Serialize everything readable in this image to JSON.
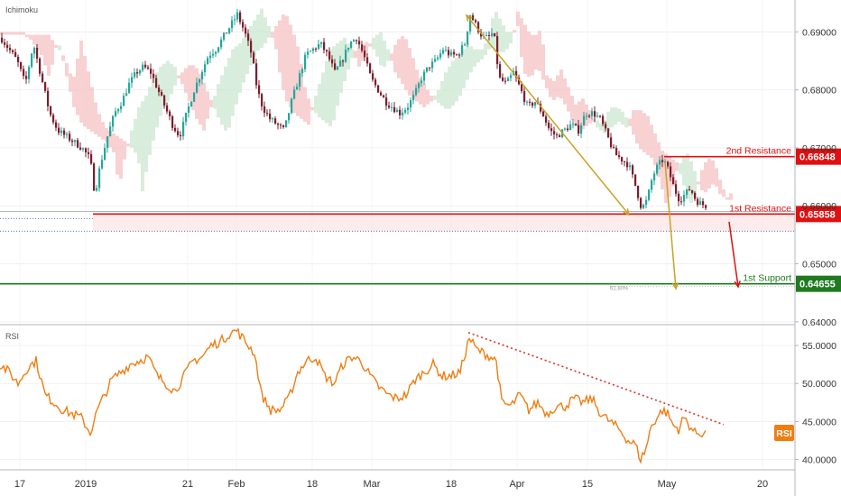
{
  "chart_data": [
    {
      "type": "candlestick",
      "indicator_label": "Ichimoku",
      "y_ticks": [
        "0.69000",
        "0.68000",
        "0.67000",
        "0.66000",
        "0.65000",
        "0.64000"
      ],
      "ylim": [
        0.6395,
        0.6955
      ],
      "x_ticks": [
        "17",
        "2019",
        "21",
        "Feb",
        "18",
        "Mar",
        "18",
        "Apr",
        "15",
        "May",
        "20"
      ],
      "price_path": [
        [
          0,
          0.689
        ],
        [
          9,
          0.687
        ],
        [
          18,
          0.685
        ],
        [
          27,
          0.681
        ],
        [
          36,
          0.688
        ],
        [
          45,
          0.682
        ],
        [
          54,
          0.676
        ],
        [
          63,
          0.673
        ],
        [
          72,
          0.672
        ],
        [
          81,
          0.671
        ],
        [
          90,
          0.67
        ],
        [
          99,
          0.668
        ],
        [
          104,
          0.662
        ],
        [
          110,
          0.667
        ],
        [
          118,
          0.672
        ],
        [
          126,
          0.676
        ],
        [
          134,
          0.678
        ],
        [
          142,
          0.681
        ],
        [
          150,
          0.683
        ],
        [
          158,
          0.684
        ],
        [
          166,
          0.683
        ],
        [
          174,
          0.68
        ],
        [
          182,
          0.677
        ],
        [
          190,
          0.674
        ],
        [
          198,
          0.672
        ],
        [
          206,
          0.676
        ],
        [
          214,
          0.68
        ],
        [
          222,
          0.683
        ],
        [
          230,
          0.686
        ],
        [
          238,
          0.687
        ],
        [
          246,
          0.689
        ],
        [
          254,
          0.691
        ],
        [
          262,
          0.693
        ],
        [
          270,
          0.69
        ],
        [
          278,
          0.686
        ],
        [
          284,
          0.68
        ],
        [
          290,
          0.677
        ],
        [
          298,
          0.675
        ],
        [
          306,
          0.674
        ],
        [
          314,
          0.673
        ],
        [
          322,
          0.678
        ],
        [
          330,
          0.682
        ],
        [
          338,
          0.686
        ],
        [
          346,
          0.687
        ],
        [
          354,
          0.688
        ],
        [
          362,
          0.686
        ],
        [
          370,
          0.683
        ],
        [
          378,
          0.685
        ],
        [
          386,
          0.688
        ],
        [
          394,
          0.689
        ],
        [
          402,
          0.686
        ],
        [
          410,
          0.682
        ],
        [
          418,
          0.68
        ],
        [
          426,
          0.678
        ],
        [
          434,
          0.677
        ],
        [
          442,
          0.676
        ],
        [
          450,
          0.677
        ],
        [
          458,
          0.679
        ],
        [
          466,
          0.682
        ],
        [
          474,
          0.684
        ],
        [
          482,
          0.685
        ],
        [
          490,
          0.687
        ],
        [
          498,
          0.686
        ],
        [
          506,
          0.686
        ],
        [
          514,
          0.688
        ],
        [
          520,
          0.693
        ],
        [
          527,
          0.691
        ],
        [
          534,
          0.689
        ],
        [
          540,
          0.689
        ],
        [
          546,
          0.69
        ],
        [
          552,
          0.682
        ],
        [
          560,
          0.681
        ],
        [
          568,
          0.683
        ],
        [
          576,
          0.68
        ],
        [
          584,
          0.677
        ],
        [
          592,
          0.678
        ],
        [
          600,
          0.676
        ],
        [
          608,
          0.673
        ],
        [
          616,
          0.672
        ],
        [
          624,
          0.673
        ],
        [
          632,
          0.674
        ],
        [
          640,
          0.673
        ],
        [
          648,
          0.676
        ],
        [
          656,
          0.676
        ],
        [
          664,
          0.675
        ],
        [
          672,
          0.672
        ],
        [
          680,
          0.669
        ],
        [
          688,
          0.668
        ],
        [
          696,
          0.667
        ],
        [
          704,
          0.663
        ],
        [
          710,
          0.6595
        ],
        [
          716,
          0.661
        ],
        [
          722,
          0.665
        ],
        [
          728,
          0.667
        ],
        [
          734,
          0.668
        ],
        [
          740,
          0.666
        ],
        [
          746,
          0.663
        ],
        [
          752,
          0.661
        ],
        [
          758,
          0.662
        ],
        [
          764,
          0.663
        ],
        [
          770,
          0.661
        ],
        [
          776,
          0.6603
        ],
        [
          782,
          0.66
        ]
      ],
      "annotations": {
        "resistance_2": {
          "label": "2nd Resistance",
          "value": "0.66848"
        },
        "resistance_1": {
          "label": "1st Resistance",
          "value": "0.65858"
        },
        "support_1": {
          "label": "1st Support",
          "value": "0.64655"
        },
        "fib_label": "61.80%"
      },
      "colors": {
        "up": "#26a69a",
        "down": "#7b1e2c",
        "resistance": "#e01010",
        "support": "#1f7a1f",
        "cloud_bear": "#f6c6c8",
        "cloud_bull": "#cfe8d4",
        "arrow": "#c9a227",
        "projection": "#e01010"
      }
    },
    {
      "type": "line",
      "indicator_label": "RSI",
      "y_ticks": [
        "55.0000",
        "50.0000",
        "45.0000",
        "40.0000"
      ],
      "ylim": [
        39.0,
        57.5
      ],
      "badge": "RSI",
      "rsi_path": [
        [
          0,
          52.5
        ],
        [
          10,
          51.5
        ],
        [
          20,
          50.0
        ],
        [
          30,
          52.0
        ],
        [
          40,
          53.0
        ],
        [
          50,
          48.5
        ],
        [
          60,
          47.5
        ],
        [
          70,
          46.5
        ],
        [
          80,
          46.0
        ],
        [
          90,
          45.5
        ],
        [
          100,
          43.5
        ],
        [
          108,
          46.5
        ],
        [
          116,
          48.5
        ],
        [
          124,
          50.5
        ],
        [
          134,
          51.5
        ],
        [
          144,
          52.5
        ],
        [
          154,
          53.0
        ],
        [
          164,
          53.5
        ],
        [
          174,
          51.0
        ],
        [
          184,
          50.0
        ],
        [
          194,
          49.0
        ],
        [
          204,
          51.0
        ],
        [
          214,
          53.0
        ],
        [
          224,
          53.5
        ],
        [
          234,
          55.0
        ],
        [
          244,
          55.5
        ],
        [
          254,
          56.5
        ],
        [
          262,
          57.0
        ],
        [
          272,
          55.5
        ],
        [
          282,
          54.0
        ],
        [
          290,
          48.5
        ],
        [
          300,
          46.5
        ],
        [
          310,
          46.5
        ],
        [
          320,
          48.0
        ],
        [
          330,
          51.5
        ],
        [
          340,
          53.0
        ],
        [
          350,
          53.5
        ],
        [
          360,
          51.0
        ],
        [
          370,
          50.0
        ],
        [
          380,
          52.5
        ],
        [
          390,
          53.5
        ],
        [
          400,
          53.0
        ],
        [
          410,
          51.0
        ],
        [
          420,
          49.5
        ],
        [
          430,
          48.5
        ],
        [
          440,
          48.0
        ],
        [
          450,
          48.5
        ],
        [
          460,
          50.5
        ],
        [
          470,
          51.5
        ],
        [
          480,
          52.5
        ],
        [
          490,
          51.0
        ],
        [
          500,
          51.0
        ],
        [
          510,
          51.5
        ],
        [
          520,
          56.0
        ],
        [
          528,
          54.5
        ],
        [
          536,
          54.0
        ],
        [
          544,
          53.5
        ],
        [
          550,
          53.0
        ],
        [
          556,
          47.5
        ],
        [
          566,
          47.0
        ],
        [
          576,
          48.5
        ],
        [
          586,
          46.5
        ],
        [
          596,
          47.5
        ],
        [
          606,
          46.0
        ],
        [
          616,
          47.0
        ],
        [
          626,
          47.0
        ],
        [
          636,
          48.0
        ],
        [
          646,
          47.5
        ],
        [
          656,
          48.0
        ],
        [
          666,
          46.0
        ],
        [
          676,
          45.0
        ],
        [
          686,
          44.0
        ],
        [
          696,
          42.5
        ],
        [
          704,
          42.0
        ],
        [
          710,
          40.0
        ],
        [
          716,
          41.5
        ],
        [
          722,
          44.5
        ],
        [
          728,
          45.5
        ],
        [
          734,
          46.5
        ],
        [
          740,
          46.0
        ],
        [
          746,
          44.5
        ],
        [
          752,
          44.0
        ],
        [
          758,
          45.5
        ],
        [
          764,
          44.5
        ],
        [
          770,
          43.5
        ],
        [
          776,
          43.5
        ],
        [
          782,
          43.5
        ]
      ],
      "colors": {
        "line": "#f07d12",
        "trend": "#e0302c",
        "badge_bg": "#f07d12",
        "badge_text": "#ffffff"
      }
    }
  ]
}
